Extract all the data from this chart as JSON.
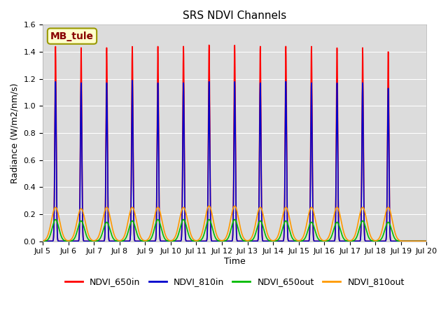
{
  "title": "SRS NDVI Channels",
  "xlabel": "Time",
  "ylabel": "Radiance (W/m2/nm/s)",
  "xlim_days": [
    5,
    20
  ],
  "ylim": [
    0.0,
    1.6
  ],
  "yticks": [
    0.0,
    0.2,
    0.4,
    0.6,
    0.8,
    1.0,
    1.2,
    1.4,
    1.6
  ],
  "xtick_labels": [
    "Jul 5",
    "Jul 6",
    "Jul 7",
    "Jul 8",
    "Jul 9",
    "Jul 10",
    "Jul 11",
    "Jul 12",
    "Jul 13",
    "Jul 14",
    "Jul 15",
    "Jul 16",
    "Jul 17",
    "Jul 18",
    "Jul 19",
    "Jul 20"
  ],
  "site_label": "MB_tule",
  "site_label_bg": "#ffffcc",
  "site_label_border": "#999900",
  "site_label_color": "#880000",
  "bg_color": "#dcdcdc",
  "colors": {
    "NDVI_650in": "#ff0000",
    "NDVI_810in": "#0000cc",
    "NDVI_650out": "#00bb00",
    "NDVI_810out": "#ff9900"
  },
  "peaks_650in": [
    1.44,
    1.43,
    1.43,
    1.44,
    1.44,
    1.44,
    1.45,
    1.45,
    1.44,
    1.44,
    1.44,
    1.43,
    1.43,
    1.4
  ],
  "peaks_810in": [
    1.18,
    1.17,
    1.17,
    1.19,
    1.17,
    1.17,
    1.18,
    1.18,
    1.17,
    1.18,
    1.17,
    1.17,
    1.17,
    1.13
  ],
  "peaks_650out": [
    0.16,
    0.15,
    0.14,
    0.15,
    0.16,
    0.16,
    0.16,
    0.16,
    0.15,
    0.15,
    0.14,
    0.14,
    0.15,
    0.14
  ],
  "peaks_810out": [
    0.25,
    0.24,
    0.25,
    0.25,
    0.25,
    0.25,
    0.26,
    0.26,
    0.25,
    0.25,
    0.25,
    0.25,
    0.25,
    0.25
  ],
  "line_width": 1.2,
  "figsize": [
    6.4,
    4.8
  ],
  "dpi": 100
}
